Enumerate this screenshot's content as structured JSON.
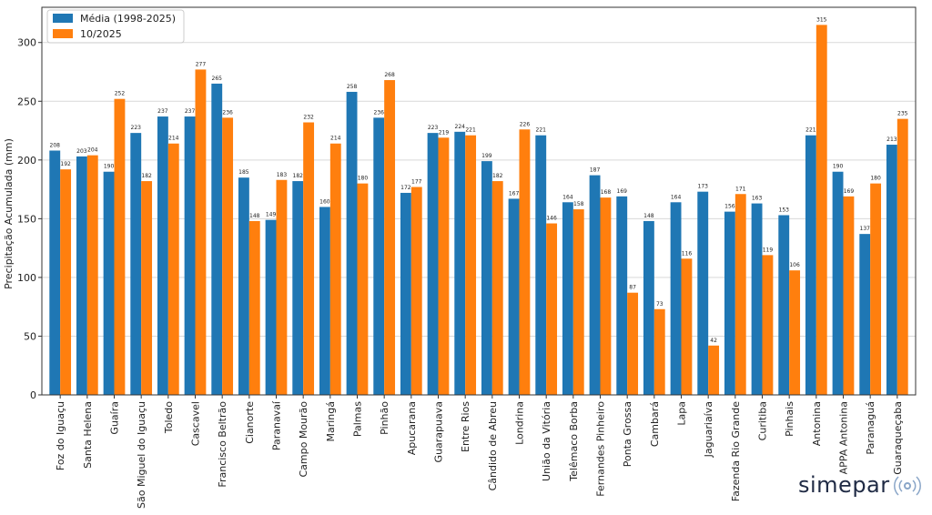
{
  "chart_data": {
    "type": "bar",
    "title": "",
    "xlabel": "",
    "ylabel": "Precipitação Acumulada (mm)",
    "ylim": [
      0,
      330
    ],
    "yticks": [
      0,
      50,
      100,
      150,
      200,
      250,
      300
    ],
    "grid": true,
    "legend_position": "top-left",
    "categories": [
      "Foz do Iguaçu",
      "Santa Helena",
      "Guaíra",
      "São Miguel do Iguaçu",
      "Toledo",
      "Cascavel",
      "Francisco Beltrão",
      "Cianorte",
      "Paranavaí",
      "Campo Mourão",
      "Maringá",
      "Palmas",
      "Pinhão",
      "Apucarana",
      "Guarapuava",
      "Entre Rios",
      "Cândido de Abreu",
      "Londrina",
      "União da Vitória",
      "Telêmaco Borba",
      "Fernandes Pinheiro",
      "Ponta Grossa",
      "Cambará",
      "Lapa",
      "Jaguariaíva",
      "Fazenda Rio Grande",
      "Curitiba",
      "Pinhais",
      "Antonina",
      "APPA Antonina",
      "Paranaguá",
      "Guaraqueçaba"
    ],
    "series": [
      {
        "name": "Média (1998-2025)",
        "color": "#1f77b4",
        "values": [
          208,
          203,
          190,
          223,
          237,
          237,
          265,
          185,
          149,
          182,
          160,
          258,
          236,
          172,
          223,
          224,
          199,
          167,
          221,
          164,
          187,
          169,
          148,
          164,
          173,
          156,
          163,
          153,
          221,
          190,
          137,
          213
        ]
      },
      {
        "name": "10/2025",
        "color": "#ff7f0e",
        "values": [
          192,
          204,
          252,
          182,
          214,
          277,
          236,
          148,
          183,
          232,
          214,
          180,
          268,
          177,
          219,
          221,
          182,
          226,
          146,
          158,
          168,
          87,
          73,
          116,
          42,
          171,
          119,
          106,
          315,
          169,
          180,
          235
        ]
      }
    ]
  },
  "brand": {
    "logo_text": "simepar"
  }
}
